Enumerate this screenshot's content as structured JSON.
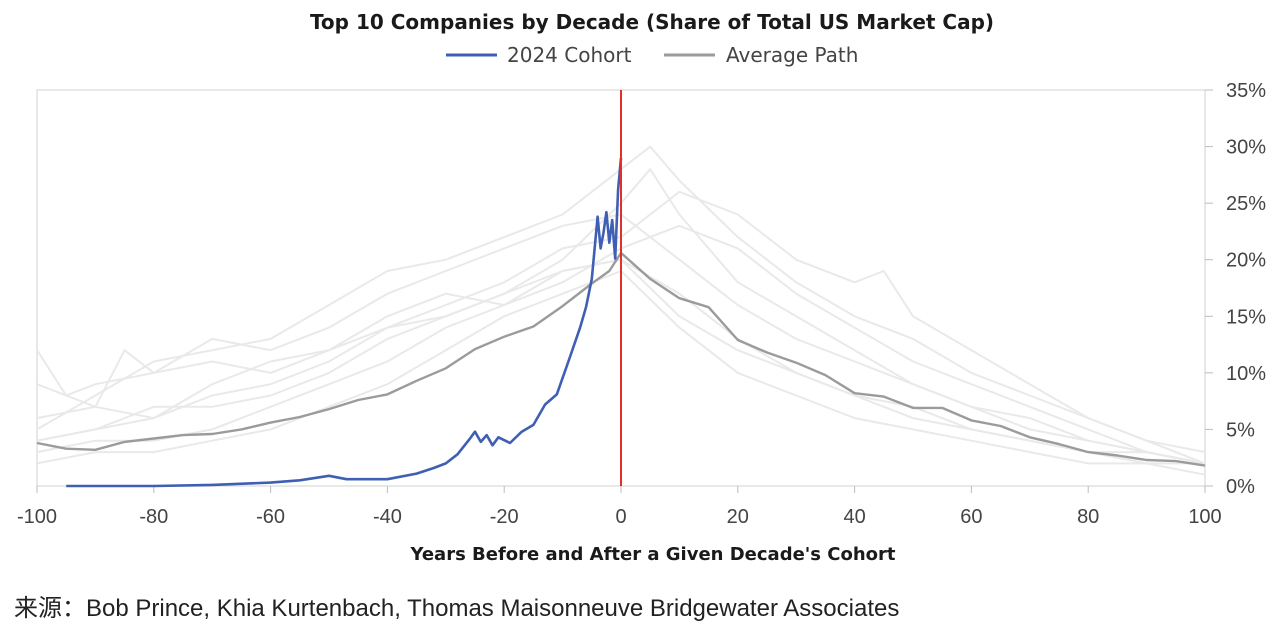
{
  "chart_data": {
    "type": "line",
    "title": "Top 10 Companies by Decade (Share of Total US Market Cap)",
    "xlabel": "Years Before and After a Given Decade's Cohort",
    "ylabel": "",
    "xlim": [
      -100,
      100
    ],
    "ylim": [
      0,
      35
    ],
    "x_ticks": [
      "-100",
      "-80",
      "-60",
      "-40",
      "-20",
      "0",
      "20",
      "40",
      "60",
      "80",
      "100"
    ],
    "y_ticks": [
      "0%",
      "5%",
      "10%",
      "15%",
      "20%",
      "25%",
      "30%",
      "35%"
    ],
    "y_axis_side": "right",
    "legend_position": "top-center",
    "reference_line": {
      "x": 0,
      "color": "#e0302a"
    },
    "series": [
      {
        "name": "2024 Cohort",
        "color": "#3f5fb4",
        "points": [
          [
            -95,
            0.0
          ],
          [
            -80,
            0.0
          ],
          [
            -70,
            0.1
          ],
          [
            -60,
            0.3
          ],
          [
            -55,
            0.5
          ],
          [
            -50,
            0.9
          ],
          [
            -47,
            0.6
          ],
          [
            -40,
            0.6
          ],
          [
            -35,
            1.1
          ],
          [
            -32,
            1.6
          ],
          [
            -30,
            2.0
          ],
          [
            -28,
            2.8
          ],
          [
            -26,
            4.1
          ],
          [
            -25,
            4.8
          ],
          [
            -24,
            3.9
          ],
          [
            -23,
            4.5
          ],
          [
            -22,
            3.6
          ],
          [
            -21,
            4.3
          ],
          [
            -19,
            3.8
          ],
          [
            -17,
            4.8
          ],
          [
            -15,
            5.4
          ],
          [
            -13,
            7.2
          ],
          [
            -11,
            8.1
          ],
          [
            -9,
            11.0
          ],
          [
            -7,
            14.0
          ],
          [
            -6,
            15.8
          ],
          [
            -5,
            18.3
          ],
          [
            -4,
            23.8
          ],
          [
            -3.5,
            21.0
          ],
          [
            -3,
            22.4
          ],
          [
            -2.5,
            24.2
          ],
          [
            -2,
            21.5
          ],
          [
            -1.5,
            23.5
          ],
          [
            -1,
            20.1
          ],
          [
            -0.5,
            26.2
          ],
          [
            0,
            29.0
          ]
        ]
      },
      {
        "name": "Average Path",
        "color": "#9b9b9b",
        "points": [
          [
            -100,
            3.8
          ],
          [
            -95,
            3.3
          ],
          [
            -90,
            3.2
          ],
          [
            -85,
            3.9
          ],
          [
            -80,
            4.2
          ],
          [
            -75,
            4.5
          ],
          [
            -70,
            4.6
          ],
          [
            -65,
            5.0
          ],
          [
            -60,
            5.6
          ],
          [
            -55,
            6.1
          ],
          [
            -50,
            6.8
          ],
          [
            -45,
            7.6
          ],
          [
            -40,
            8.1
          ],
          [
            -35,
            9.3
          ],
          [
            -30,
            10.4
          ],
          [
            -25,
            12.1
          ],
          [
            -20,
            13.2
          ],
          [
            -15,
            14.1
          ],
          [
            -10,
            15.9
          ],
          [
            -5,
            17.9
          ],
          [
            -2,
            19.0
          ],
          [
            0,
            20.6
          ],
          [
            5,
            18.3
          ],
          [
            10,
            16.6
          ],
          [
            15,
            15.8
          ],
          [
            20,
            12.9
          ],
          [
            25,
            11.8
          ],
          [
            30,
            10.9
          ],
          [
            35,
            9.8
          ],
          [
            40,
            8.2
          ],
          [
            45,
            7.9
          ],
          [
            50,
            6.9
          ],
          [
            55,
            6.9
          ],
          [
            60,
            5.8
          ],
          [
            65,
            5.3
          ],
          [
            70,
            4.3
          ],
          [
            75,
            3.7
          ],
          [
            80,
            3.0
          ],
          [
            85,
            2.7
          ],
          [
            90,
            2.3
          ],
          [
            95,
            2.2
          ],
          [
            100,
            1.8
          ]
        ]
      },
      {
        "name": "",
        "color": "#e9e9e9",
        "points": [
          [
            -100,
            5
          ],
          [
            -90,
            8
          ],
          [
            -80,
            11
          ],
          [
            -70,
            12
          ],
          [
            -60,
            13
          ],
          [
            -50,
            16
          ],
          [
            -40,
            19
          ],
          [
            -30,
            20
          ],
          [
            -20,
            22
          ],
          [
            -10,
            24
          ],
          [
            -5,
            26
          ],
          [
            0,
            28
          ],
          [
            5,
            30
          ],
          [
            10,
            27
          ],
          [
            20,
            22
          ],
          [
            30,
            18
          ],
          [
            40,
            15
          ],
          [
            50,
            13
          ],
          [
            60,
            10
          ],
          [
            70,
            8
          ],
          [
            80,
            6
          ],
          [
            90,
            4
          ],
          [
            100,
            3
          ]
        ]
      },
      {
        "name": "",
        "color": "#e9e9e9",
        "points": [
          [
            -100,
            12
          ],
          [
            -95,
            8
          ],
          [
            -90,
            9
          ],
          [
            -80,
            10
          ],
          [
            -70,
            13
          ],
          [
            -60,
            12
          ],
          [
            -50,
            14
          ],
          [
            -40,
            17
          ],
          [
            -30,
            19
          ],
          [
            -20,
            21
          ],
          [
            -10,
            23
          ],
          [
            0,
            24
          ],
          [
            10,
            20
          ],
          [
            20,
            16
          ],
          [
            30,
            13
          ],
          [
            40,
            11
          ],
          [
            50,
            9
          ],
          [
            60,
            7
          ],
          [
            70,
            6
          ],
          [
            80,
            4
          ],
          [
            90,
            3
          ],
          [
            100,
            2
          ]
        ]
      },
      {
        "name": "",
        "color": "#e9e9e9",
        "points": [
          [
            -100,
            4
          ],
          [
            -90,
            5
          ],
          [
            -80,
            6
          ],
          [
            -70,
            8
          ],
          [
            -60,
            9
          ],
          [
            -50,
            11
          ],
          [
            -40,
            14
          ],
          [
            -30,
            16
          ],
          [
            -20,
            18
          ],
          [
            -10,
            21
          ],
          [
            0,
            22
          ],
          [
            10,
            26
          ],
          [
            20,
            24
          ],
          [
            30,
            20
          ],
          [
            40,
            18
          ],
          [
            45,
            19
          ],
          [
            50,
            15
          ],
          [
            60,
            12
          ],
          [
            70,
            9
          ],
          [
            80,
            6
          ],
          [
            90,
            4
          ],
          [
            100,
            2
          ]
        ]
      },
      {
        "name": "",
        "color": "#e9e9e9",
        "points": [
          [
            -100,
            3
          ],
          [
            -90,
            4
          ],
          [
            -80,
            4
          ],
          [
            -70,
            5
          ],
          [
            -60,
            7
          ],
          [
            -50,
            9
          ],
          [
            -40,
            11
          ],
          [
            -30,
            14
          ],
          [
            -20,
            16
          ],
          [
            -10,
            19
          ],
          [
            0,
            20
          ],
          [
            10,
            17
          ],
          [
            20,
            13
          ],
          [
            30,
            10
          ],
          [
            40,
            8
          ],
          [
            50,
            7
          ],
          [
            60,
            5
          ],
          [
            70,
            4
          ],
          [
            80,
            3
          ],
          [
            90,
            3
          ],
          [
            100,
            2
          ]
        ]
      },
      {
        "name": "",
        "color": "#e9e9e9",
        "points": [
          [
            -100,
            6
          ],
          [
            -90,
            7
          ],
          [
            -80,
            6
          ],
          [
            -70,
            9
          ],
          [
            -60,
            11
          ],
          [
            -50,
            12
          ],
          [
            -40,
            15
          ],
          [
            -30,
            17
          ],
          [
            -20,
            16
          ],
          [
            -10,
            18
          ],
          [
            0,
            21
          ],
          [
            10,
            23
          ],
          [
            20,
            21
          ],
          [
            30,
            17
          ],
          [
            40,
            14
          ],
          [
            50,
            11
          ],
          [
            60,
            9
          ],
          [
            70,
            7
          ],
          [
            80,
            5
          ],
          [
            90,
            3
          ],
          [
            100,
            2
          ]
        ]
      },
      {
        "name": "",
        "color": "#e9e9e9",
        "points": [
          [
            -100,
            2
          ],
          [
            -90,
            3
          ],
          [
            -80,
            3
          ],
          [
            -70,
            4
          ],
          [
            -60,
            5
          ],
          [
            -50,
            7
          ],
          [
            -40,
            9
          ],
          [
            -30,
            12
          ],
          [
            -20,
            15
          ],
          [
            -10,
            17
          ],
          [
            0,
            19
          ],
          [
            10,
            14
          ],
          [
            20,
            10
          ],
          [
            30,
            8
          ],
          [
            40,
            6
          ],
          [
            50,
            5
          ],
          [
            60,
            4
          ],
          [
            70,
            3
          ],
          [
            80,
            2
          ],
          [
            90,
            2
          ],
          [
            100,
            1
          ]
        ]
      },
      {
        "name": "",
        "color": "#e9e9e9",
        "points": [
          [
            -100,
            4
          ],
          [
            -90,
            5
          ],
          [
            -80,
            7
          ],
          [
            -70,
            7
          ],
          [
            -60,
            8
          ],
          [
            -50,
            10
          ],
          [
            -40,
            13
          ],
          [
            -30,
            15
          ],
          [
            -20,
            17
          ],
          [
            -10,
            20
          ],
          [
            0,
            25
          ],
          [
            5,
            28
          ],
          [
            10,
            24
          ],
          [
            20,
            18
          ],
          [
            30,
            15
          ],
          [
            40,
            12
          ],
          [
            50,
            9
          ],
          [
            60,
            7
          ],
          [
            70,
            5
          ],
          [
            80,
            4
          ],
          [
            90,
            3
          ],
          [
            100,
            2
          ]
        ]
      },
      {
        "name": "",
        "color": "#e9e9e9",
        "points": [
          [
            -100,
            9
          ],
          [
            -90,
            7
          ],
          [
            -85,
            12
          ],
          [
            -80,
            10
          ],
          [
            -70,
            11
          ],
          [
            -60,
            10
          ],
          [
            -50,
            12
          ],
          [
            -40,
            14
          ],
          [
            -30,
            15
          ],
          [
            -20,
            17
          ],
          [
            -10,
            19
          ],
          [
            0,
            20
          ],
          [
            10,
            15
          ],
          [
            20,
            12
          ],
          [
            30,
            10
          ],
          [
            40,
            8
          ],
          [
            50,
            6
          ],
          [
            60,
            5
          ],
          [
            70,
            4
          ],
          [
            80,
            3
          ],
          [
            90,
            2
          ],
          [
            100,
            2
          ]
        ]
      }
    ]
  },
  "source_text": "来源：Bob Prince, Khia Kurtenbach, Thomas Maisonneuve Bridgewater Associates"
}
